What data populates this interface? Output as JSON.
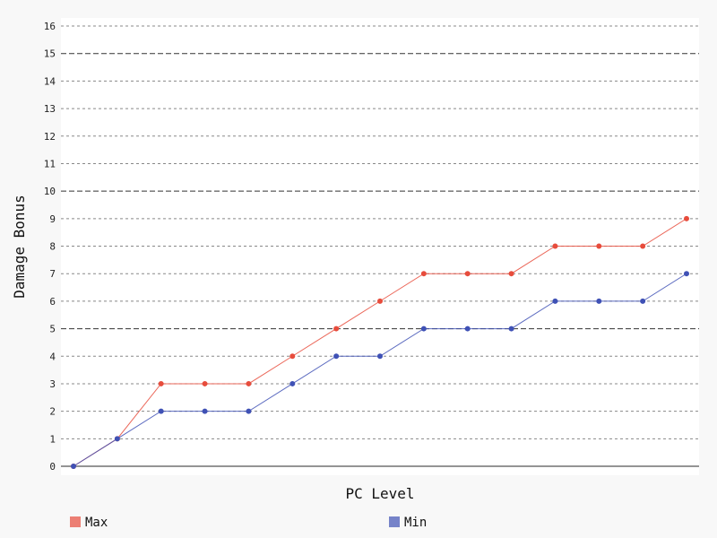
{
  "chart_data": {
    "type": "line",
    "title": "",
    "xlabel": "PC Level",
    "ylabel": "Damage Bonus",
    "x": [
      1,
      2,
      3,
      4,
      5,
      6,
      7,
      8,
      9,
      10,
      11,
      12,
      13,
      14,
      15
    ],
    "ylim": [
      0,
      16
    ],
    "yticks": [
      0,
      1,
      2,
      3,
      4,
      5,
      6,
      7,
      8,
      9,
      10,
      11,
      12,
      13,
      14,
      15,
      16
    ],
    "grid": true,
    "legend_position": "bottom",
    "series": [
      {
        "name": "Max",
        "color": "#e74c3c",
        "values": [
          0,
          1,
          3,
          3,
          3,
          4,
          5,
          6,
          7,
          7,
          7,
          8,
          8,
          8,
          9
        ]
      },
      {
        "name": "Min",
        "color": "#3f51b5",
        "values": [
          0,
          1,
          2,
          2,
          2,
          3,
          4,
          4,
          5,
          5,
          5,
          6,
          6,
          6,
          7
        ]
      }
    ]
  }
}
